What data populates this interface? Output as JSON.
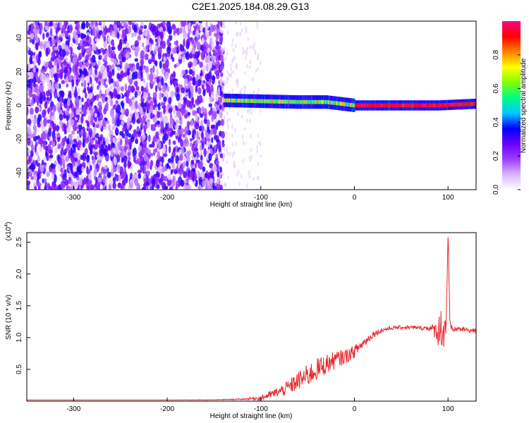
{
  "figure": {
    "title": "C2E1.2025.184.08.29.G13"
  },
  "chart_data": [
    {
      "type": "heatmap",
      "xlabel": "Height of straight line (km)",
      "ylabel": "Frequency (Hz)",
      "xlim": [
        -350,
        130
      ],
      "ylim": [
        -50,
        50
      ],
      "xticks": [
        -300,
        -200,
        -100,
        0,
        100
      ],
      "yticks": [
        -40,
        -20,
        0,
        20,
        40
      ],
      "colorbar": {
        "label": "Normalized spectral amplitude",
        "range": [
          0,
          1
        ],
        "ticks": [
          "0.0",
          "0.2",
          "0.4",
          "0.6",
          "0.8"
        ],
        "colors": [
          "#ffffff",
          "#d9b3ff",
          "#9a3cff",
          "#6a00ff",
          "#0000ff",
          "#00c8ff",
          "#00ff80",
          "#80ff00",
          "#ffff00",
          "#ff8000",
          "#ff0000",
          "#ff0080"
        ]
      },
      "regions": [
        {
          "name": "broadband-noise",
          "x_range": [
            -350,
            -140
          ],
          "y_range": [
            -50,
            50
          ],
          "amplitude": [
            0.05,
            0.35
          ]
        },
        {
          "name": "signal-band",
          "x_range": [
            -140,
            130
          ],
          "center_hz": [
            [
              -140,
              3
            ],
            [
              -60,
              2
            ],
            [
              -30,
              2
            ],
            [
              0,
              0
            ],
            [
              90,
              0
            ],
            [
              130,
              1
            ]
          ],
          "amplitude": [
            0.5,
            1.0
          ]
        }
      ]
    },
    {
      "type": "line",
      "xlabel": "Height of straight line (km)",
      "ylabel": "SNR (10 * v/v)",
      "multiplier": "(x10",
      "multiplier_exp": "4",
      "xlim": [
        -350,
        130
      ],
      "ylim": [
        0,
        2.65
      ],
      "xticks": [
        -300,
        -200,
        -100,
        0,
        100
      ],
      "yticks": [
        "0.5",
        "1.0",
        "1.5",
        "2.0",
        "2.5"
      ],
      "series": [
        {
          "color": "#e8282b",
          "x": [
            -350,
            -300,
            -250,
            -200,
            -150,
            -120,
            -100,
            -90,
            -80,
            -70,
            -60,
            -50,
            -40,
            -30,
            -20,
            -10,
            0,
            10,
            20,
            30,
            40,
            50,
            60,
            70,
            80,
            85,
            90,
            93,
            96,
            98,
            100,
            102,
            105,
            110,
            120,
            130
          ],
          "y": [
            0.02,
            0.02,
            0.02,
            0.02,
            0.02,
            0.03,
            0.05,
            0.1,
            0.15,
            0.22,
            0.32,
            0.4,
            0.5,
            0.58,
            0.65,
            0.7,
            0.78,
            0.92,
            1.05,
            1.12,
            1.15,
            1.16,
            1.16,
            1.15,
            1.15,
            1.12,
            1.1,
            1.2,
            1.05,
            1.3,
            2.58,
            1.18,
            1.12,
            1.14,
            1.12,
            1.1
          ],
          "noise": [
            0,
            0,
            0,
            0,
            0.005,
            0.01,
            0.04,
            0.06,
            0.08,
            0.12,
            0.15,
            0.18,
            0.18,
            0.16,
            0.14,
            0.12,
            0.1,
            0.08,
            0.05,
            0.04,
            0.03,
            0.03,
            0.03,
            0.03,
            0.04,
            0.1,
            0.25,
            0.35,
            0.35,
            0.3,
            0.3,
            0.1,
            0.04,
            0.04,
            0.04,
            0.04
          ]
        }
      ]
    }
  ]
}
